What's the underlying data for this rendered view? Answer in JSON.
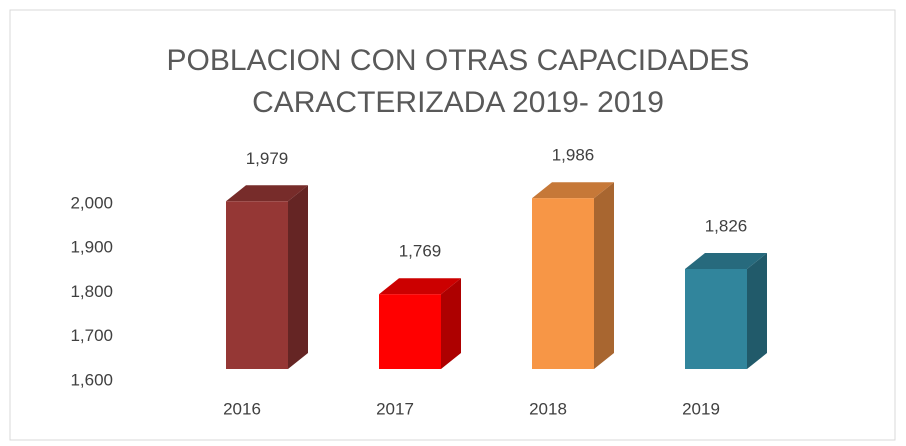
{
  "chart_data": {
    "type": "bar3d",
    "title": [
      "POBLACION CON OTRAS CAPACIDADES",
      "CARACTERIZADA  2019- 2019"
    ],
    "categories": [
      "2016",
      "2017",
      "2018",
      "2019"
    ],
    "values": [
      1979,
      1769,
      1986,
      1826
    ],
    "value_labels": [
      "1,979",
      "1,769",
      "1,986",
      "1,826"
    ],
    "colors": [
      "#953735",
      "#ff0000",
      "#f79646",
      "#31859c"
    ],
    "ylim": [
      1600,
      2000
    ],
    "yticks": [
      {
        "value": 1600,
        "label": "1,600"
      },
      {
        "value": 1700,
        "label": "1,700"
      },
      {
        "value": 1800,
        "label": "1,800"
      },
      {
        "value": 1900,
        "label": "1,900"
      },
      {
        "value": 2000,
        "label": "2,000"
      }
    ],
    "grid": false
  }
}
